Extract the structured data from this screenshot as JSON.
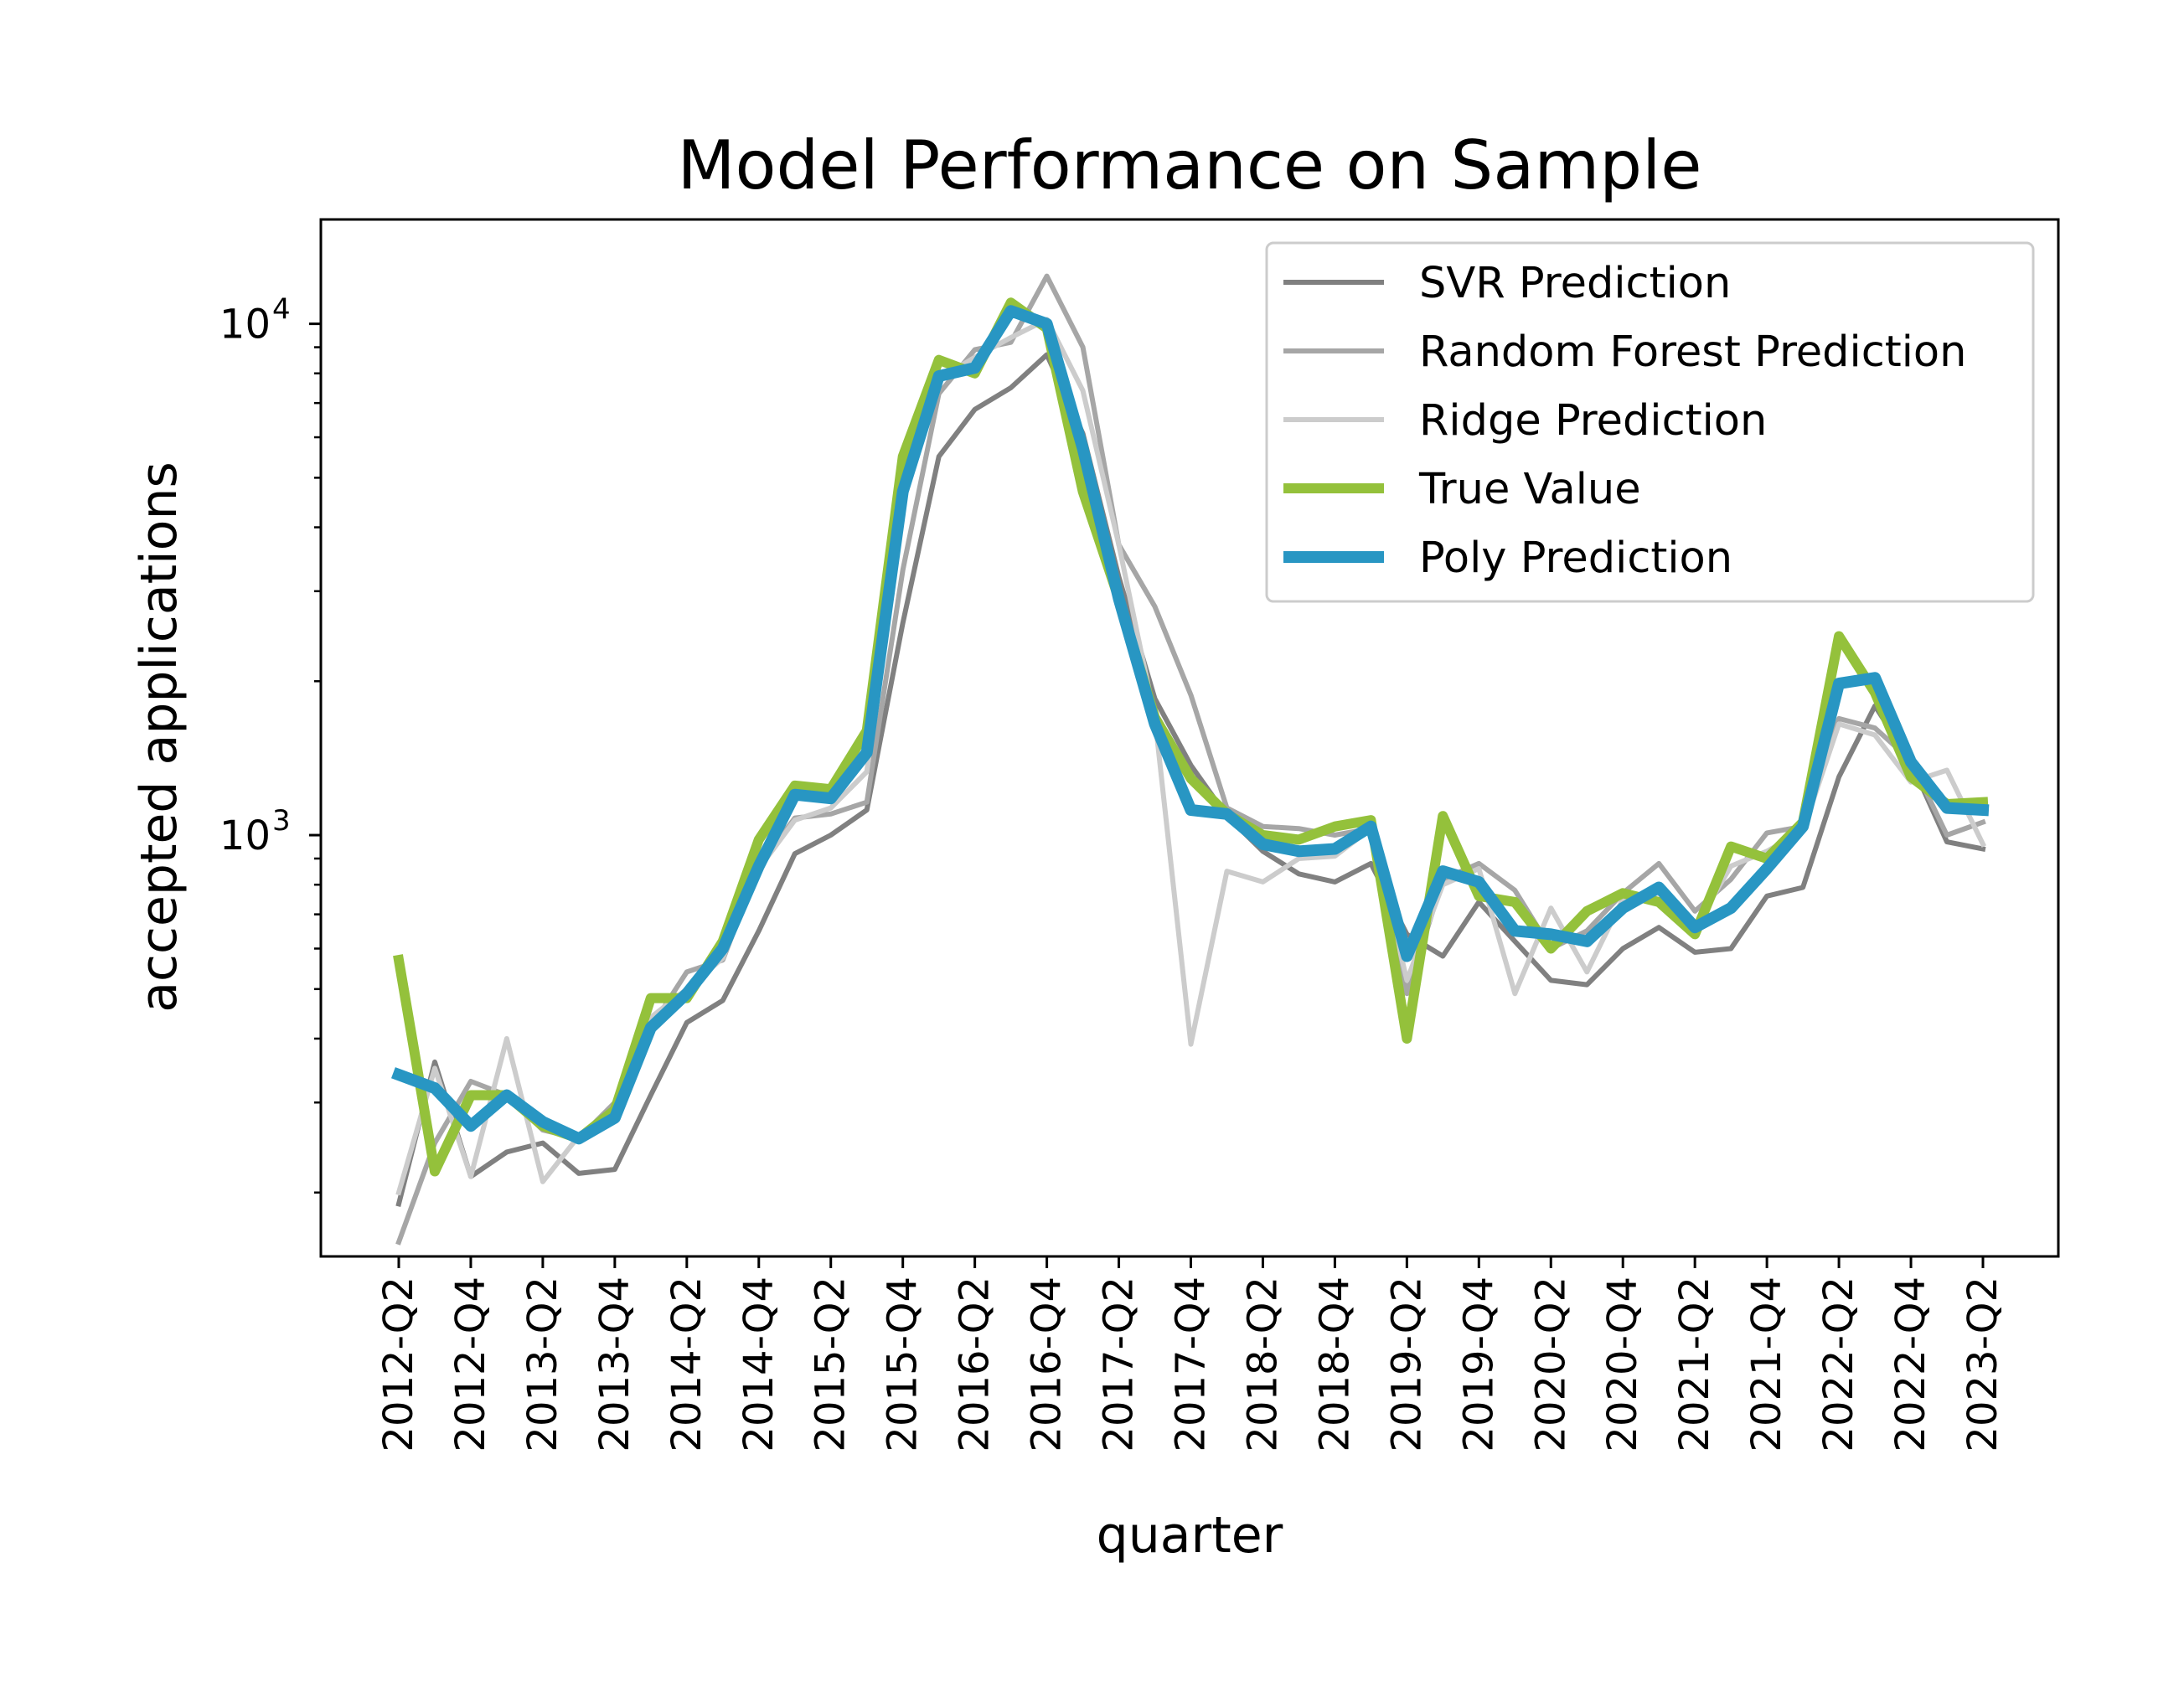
{
  "chart_data": {
    "type": "line",
    "title": "Model Performance on Sample",
    "xlabel": "quarter",
    "ylabel": "accepted applications",
    "yscale": "log",
    "ylim": [
      150,
      16000
    ],
    "grid": false,
    "legend_position": "top-right",
    "x": [
      "2012-Q2",
      "2012-Q3",
      "2012-Q4",
      "2013-Q1",
      "2013-Q2",
      "2013-Q3",
      "2013-Q4",
      "2014-Q1",
      "2014-Q2",
      "2014-Q3",
      "2014-Q4",
      "2015-Q1",
      "2015-Q2",
      "2015-Q3",
      "2015-Q4",
      "2016-Q1",
      "2016-Q2",
      "2016-Q3",
      "2016-Q4",
      "2017-Q1",
      "2017-Q2",
      "2017-Q3",
      "2017-Q4",
      "2018-Q1",
      "2018-Q2",
      "2018-Q3",
      "2018-Q4",
      "2019-Q1",
      "2019-Q2",
      "2019-Q3",
      "2019-Q4",
      "2020-Q1",
      "2020-Q2",
      "2020-Q3",
      "2020-Q4",
      "2021-Q1",
      "2021-Q2",
      "2021-Q3",
      "2021-Q4",
      "2022-Q1",
      "2022-Q2",
      "2022-Q3",
      "2022-Q4",
      "2023-Q1",
      "2023-Q2"
    ],
    "x_ticks": [
      "2012-Q2",
      "2012-Q4",
      "2013-Q2",
      "2013-Q4",
      "2014-Q2",
      "2014-Q4",
      "2015-Q2",
      "2015-Q4",
      "2016-Q2",
      "2016-Q4",
      "2017-Q2",
      "2017-Q4",
      "2018-Q2",
      "2018-Q4",
      "2019-Q2",
      "2019-Q4",
      "2020-Q2",
      "2020-Q4",
      "2021-Q2",
      "2021-Q4",
      "2022-Q2",
      "2022-Q4",
      "2023-Q2"
    ],
    "y_ticks": [
      {
        "base": "10",
        "exp": "3",
        "value": 1000
      },
      {
        "base": "10",
        "exp": "4",
        "value": 10000
      }
    ],
    "series": [
      {
        "name": "SVR Prediction",
        "color": "#808080",
        "width": 6,
        "values": [
          190,
          360,
          215,
          240,
          250,
          218,
          222,
          310,
          430,
          475,
          650,
          920,
          1000,
          1120,
          2600,
          5500,
          6800,
          7500,
          8700,
          6100,
          3200,
          1850,
          1370,
          1090,
          930,
          840,
          810,
          880,
          640,
          580,
          740,
          620,
          520,
          510,
          600,
          660,
          590,
          600,
          760,
          790,
          1300,
          1790,
          1390,
          970,
          940
        ]
      },
      {
        "name": "Random Forest Prediction",
        "color": "#a6a6a6",
        "width": 6,
        "values": [
          160,
          250,
          330,
          310,
          265,
          255,
          300,
          420,
          540,
          570,
          870,
          1080,
          1100,
          1160,
          3300,
          7300,
          8900,
          9200,
          12400,
          9000,
          3700,
          2800,
          1880,
          1130,
          1040,
          1030,
          1000,
          1030,
          490,
          820,
          880,
          780,
          600,
          650,
          770,
          880,
          710,
          820,
          1010,
          1040,
          1690,
          1620,
          1400,
          1000,
          1060
        ]
      },
      {
        "name": "Ridge Prediction",
        "color": "#cccccc",
        "width": 6,
        "values": [
          200,
          350,
          215,
          400,
          210,
          258,
          277,
          440,
          500,
          575,
          860,
          1070,
          1130,
          1330,
          4500,
          7800,
          8600,
          9400,
          10200,
          7400,
          3700,
          1700,
          390,
          850,
          810,
          900,
          910,
          1030,
          520,
          800,
          860,
          490,
          720,
          540,
          750,
          770,
          660,
          870,
          930,
          1020,
          1650,
          1570,
          1270,
          1340,
          960
        ]
      },
      {
        "name": "True Value",
        "color": "#94c13b",
        "width": 12,
        "values": [
          570,
          220,
          310,
          310,
          270,
          255,
          290,
          480,
          480,
          620,
          980,
          1250,
          1230,
          1600,
          5500,
          8500,
          8000,
          11000,
          9800,
          4700,
          2900,
          1700,
          1290,
          1100,
          1000,
          980,
          1040,
          1070,
          400,
          1090,
          760,
          740,
          600,
          710,
          770,
          740,
          640,
          950,
          900,
          1060,
          2450,
          1900,
          1300,
          1150,
          1160
        ]
      },
      {
        "name": "Poly Prediction",
        "color": "#2896c3",
        "width": 14,
        "values": [
          340,
          320,
          270,
          310,
          275,
          255,
          280,
          420,
          490,
          600,
          870,
          1200,
          1180,
          1450,
          4700,
          7900,
          8200,
          10600,
          10000,
          5700,
          2900,
          1650,
          1120,
          1100,
          960,
          930,
          940,
          1040,
          580,
          850,
          810,
          650,
          640,
          620,
          720,
          790,
          660,
          720,
          860,
          1040,
          1980,
          2030,
          1390,
          1130,
          1120
        ]
      }
    ]
  }
}
